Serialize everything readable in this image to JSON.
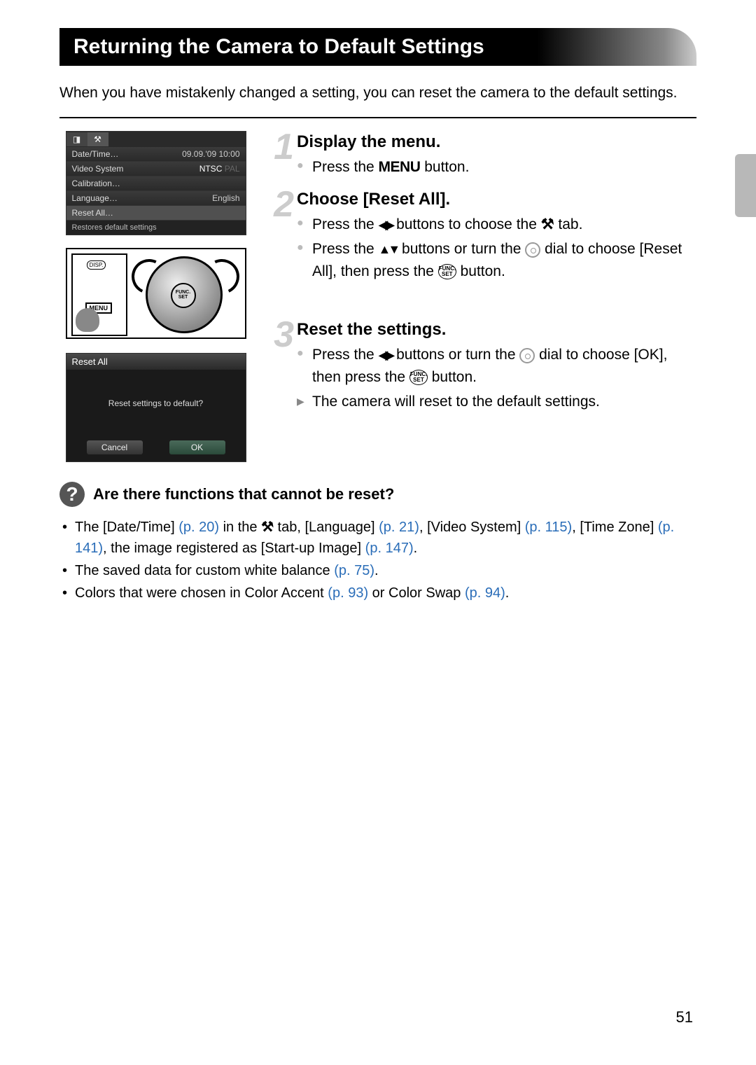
{
  "page": {
    "title": "Returning the Camera to Default Settings",
    "intro": "When you have mistakenly changed a setting, you can reset the camera to the default settings.",
    "page_number": "51"
  },
  "lcd1": {
    "rows": [
      {
        "label": "Date/Time…",
        "value": "09.09.'09 10:00"
      },
      {
        "label": "Video System",
        "value_a": "NTSC",
        "value_b": "PAL"
      },
      {
        "label": "Calibration…",
        "value": ""
      },
      {
        "label": "Language…",
        "value": "English"
      },
      {
        "label": "Reset All…",
        "value": "",
        "selected": true
      }
    ],
    "footer": "Restores default settings"
  },
  "dial": {
    "menu_label": "MENU",
    "func_label": "FUNC.\nSET"
  },
  "lcd2": {
    "header": "Reset All",
    "prompt": "Reset settings to default?",
    "cancel": "Cancel",
    "ok": "OK"
  },
  "steps": {
    "s1": {
      "num": "1",
      "title": "Display the menu.",
      "line1_a": "Press the ",
      "line1_menu": "MENU",
      "line1_b": " button."
    },
    "s2": {
      "num": "2",
      "title": "Choose [Reset All].",
      "line1_a": "Press the ",
      "line1_b": " buttons to choose the ",
      "line1_c": " tab.",
      "line2_a": "Press the ",
      "line2_b": " buttons or turn the ",
      "line2_c": " dial to choose [Reset All], then press the ",
      "line2_d": " button."
    },
    "s3": {
      "num": "3",
      "title": "Reset the settings.",
      "line1_a": "Press the ",
      "line1_b": " buttons or turn the ",
      "line1_c": " dial to choose [OK], then press the ",
      "line1_d": " button.",
      "line2": "The camera will reset to the default settings."
    }
  },
  "info": {
    "title": "Are there functions that cannot be reset?",
    "items": {
      "i1": {
        "t1": "The [Date/Time] ",
        "p1": "(p. 20)",
        "t2": " in the ",
        "t3": " tab, [Language] ",
        "p2": "(p. 21)",
        "t4": ", [Video System] ",
        "p3": "(p. 115)",
        "t5": ", [Time Zone] ",
        "p4": "(p. 141)",
        "t6": ", the image registered as [Start-up Image] ",
        "p5": "(p. 147)",
        "t7": "."
      },
      "i2": {
        "t1": "The saved data for custom white balance ",
        "p1": "(p. 75)",
        "t2": "."
      },
      "i3": {
        "t1": "Colors that were chosen in Color Accent ",
        "p1": "(p. 93)",
        "t2": " or Color Swap ",
        "p2": "(p. 94)",
        "t3": "."
      }
    }
  },
  "icons": {
    "lr": "◀▶",
    "ud": "▲▼",
    "tools": "⚒",
    "func": "FUNC.\nSET"
  }
}
